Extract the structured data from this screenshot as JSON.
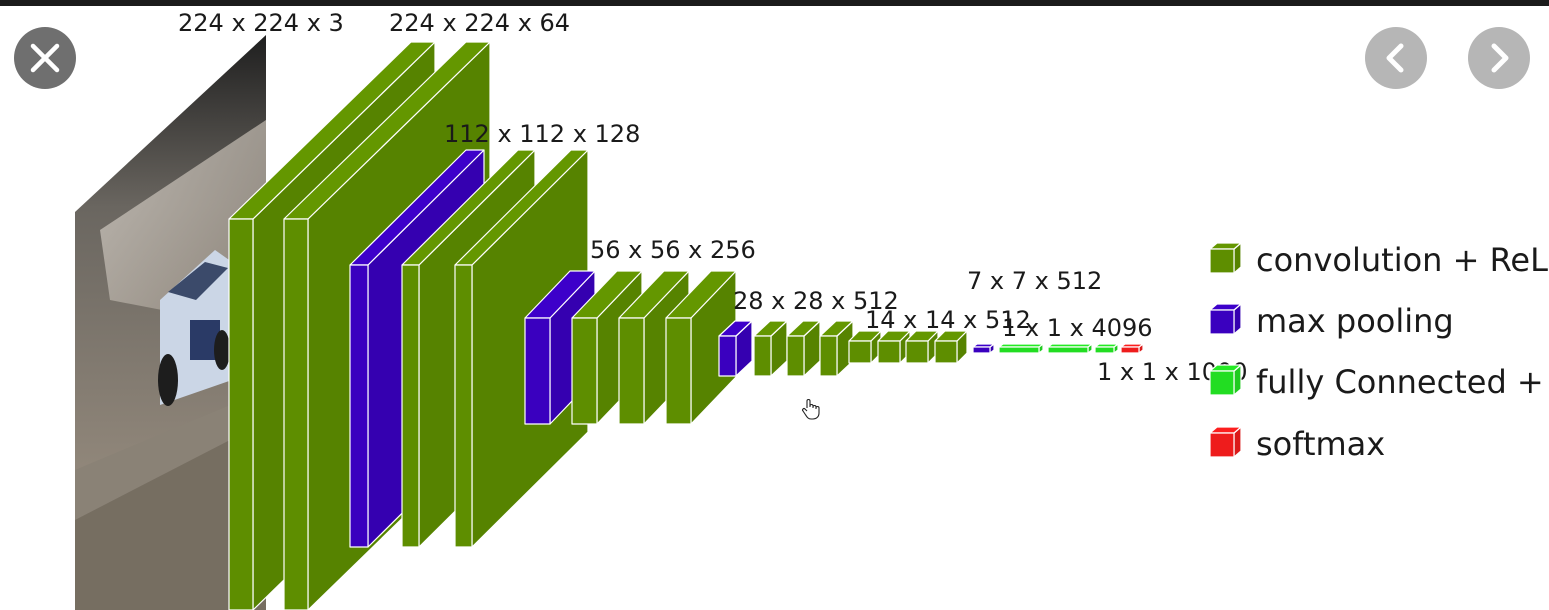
{
  "controls": {
    "close_icon": "close-icon",
    "prev_icon": "chevron-left-icon",
    "next_icon": "chevron-right-icon"
  },
  "diagram": {
    "labels": {
      "input": "224 x 224 x 3",
      "conv1": "224 x 224 x 64",
      "conv2": "112 x 112 x 128",
      "conv3": "56 x 56 x 256",
      "conv4": "28 x 28 x 512",
      "conv5": "14 x 14 x 512",
      "pool5": "7 x 7 x 512",
      "fc": "1 x 1 x 4096",
      "output": "1 x 1 x 1000"
    },
    "legend": [
      {
        "label": "convolution + ReLU",
        "color": "#5e8e00"
      },
      {
        "label": "max pooling",
        "color": "#3a00bf"
      },
      {
        "label": "fully Connected + ReLU",
        "color": "#22dd22"
      },
      {
        "label": "softmax",
        "color": "#ee1c1c"
      }
    ],
    "colors": {
      "convolution": "#5e8e00",
      "pooling": "#3a00bf",
      "fully_connected": "#22dd22",
      "softmax": "#ee1c1c"
    }
  }
}
